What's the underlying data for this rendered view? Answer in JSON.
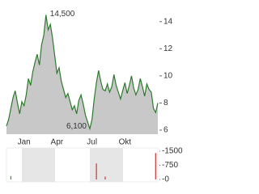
{
  "chart_data": [
    {
      "type": "area",
      "categories": [
        null,
        null,
        null,
        null,
        null,
        null,
        null,
        null,
        "Jan",
        null,
        null,
        null,
        null,
        null,
        null,
        null,
        null,
        null,
        null,
        null,
        null,
        null,
        null,
        "Apr",
        null,
        null,
        null,
        null,
        null,
        null,
        null,
        null,
        null,
        null,
        null,
        null,
        null,
        null,
        null,
        "Jul",
        null,
        null,
        null,
        null,
        null,
        null,
        null,
        null,
        null,
        null,
        null,
        null,
        null,
        null,
        "Okt",
        null,
        null,
        null,
        null,
        null,
        null,
        null,
        null,
        null,
        null,
        null,
        null,
        null,
        null,
        null
      ],
      "values": [
        6.3,
        6.8,
        7.6,
        8.4,
        8.9,
        8.0,
        7.2,
        8.1,
        7.8,
        8.6,
        9.8,
        9.3,
        10.3,
        11.0,
        11.6,
        10.8,
        12.3,
        13.0,
        14.5,
        13.4,
        13.8,
        12.8,
        11.5,
        10.2,
        10.6,
        9.6,
        9.0,
        8.4,
        8.7,
        8.1,
        7.5,
        7.8,
        7.2,
        8.2,
        8.6,
        7.9,
        7.1,
        6.6,
        6.1,
        6.8,
        8.3,
        9.5,
        10.4,
        9.6,
        9.0,
        8.9,
        9.4,
        8.8,
        9.2,
        10.1,
        9.3,
        8.8,
        8.3,
        8.9,
        9.5,
        8.7,
        9.3,
        10.0,
        9.1,
        8.6,
        9.0,
        9.8,
        9.2,
        8.5,
        9.4,
        9.0,
        8.8,
        7.6,
        7.3,
        8.0
      ],
      "max_label": "14,500",
      "min_label": "6,100",
      "color": "#2d7a2d",
      "fill": "#c8c8c8",
      "ylim": [
        5.7,
        15.3
      ],
      "yticks": [
        6,
        8,
        10,
        12,
        14
      ],
      "grid": false
    },
    {
      "type": "bar",
      "values": [
        null,
        null,
        180,
        null,
        null,
        null,
        null,
        null,
        null,
        null,
        null,
        null,
        null,
        null,
        null,
        null,
        null,
        null,
        null,
        null,
        null,
        null,
        null,
        null,
        null,
        null,
        null,
        null,
        null,
        null,
        null,
        null,
        null,
        null,
        null,
        null,
        null,
        null,
        null,
        null,
        null,
        850,
        null,
        null,
        null,
        150,
        null,
        null,
        null,
        null,
        null,
        null,
        null,
        null,
        null,
        null,
        null,
        null,
        null,
        null,
        null,
        null,
        null,
        null,
        null,
        null,
        null,
        null,
        1400,
        null
      ],
      "colors": [
        null,
        null,
        "#2e9e2e",
        null,
        null,
        null,
        null,
        null,
        null,
        null,
        null,
        null,
        null,
        null,
        null,
        null,
        null,
        null,
        null,
        null,
        null,
        null,
        null,
        null,
        null,
        null,
        null,
        null,
        null,
        null,
        null,
        null,
        null,
        null,
        null,
        null,
        null,
        null,
        null,
        null,
        null,
        "#cc3333",
        null,
        null,
        null,
        "#cc3333",
        null,
        null,
        null,
        null,
        null,
        null,
        null,
        null,
        null,
        null,
        null,
        null,
        null,
        null,
        null,
        null,
        null,
        null,
        null,
        null,
        null,
        null,
        "#cc3333",
        null
      ],
      "ylim": [
        0,
        1500
      ],
      "yticks": [
        {
          "value": 1500,
          "label": "-1500"
        },
        {
          "value": 750,
          "label": "-750"
        },
        {
          "value": 0,
          "label": "-0"
        }
      ],
      "grid": false
    }
  ]
}
